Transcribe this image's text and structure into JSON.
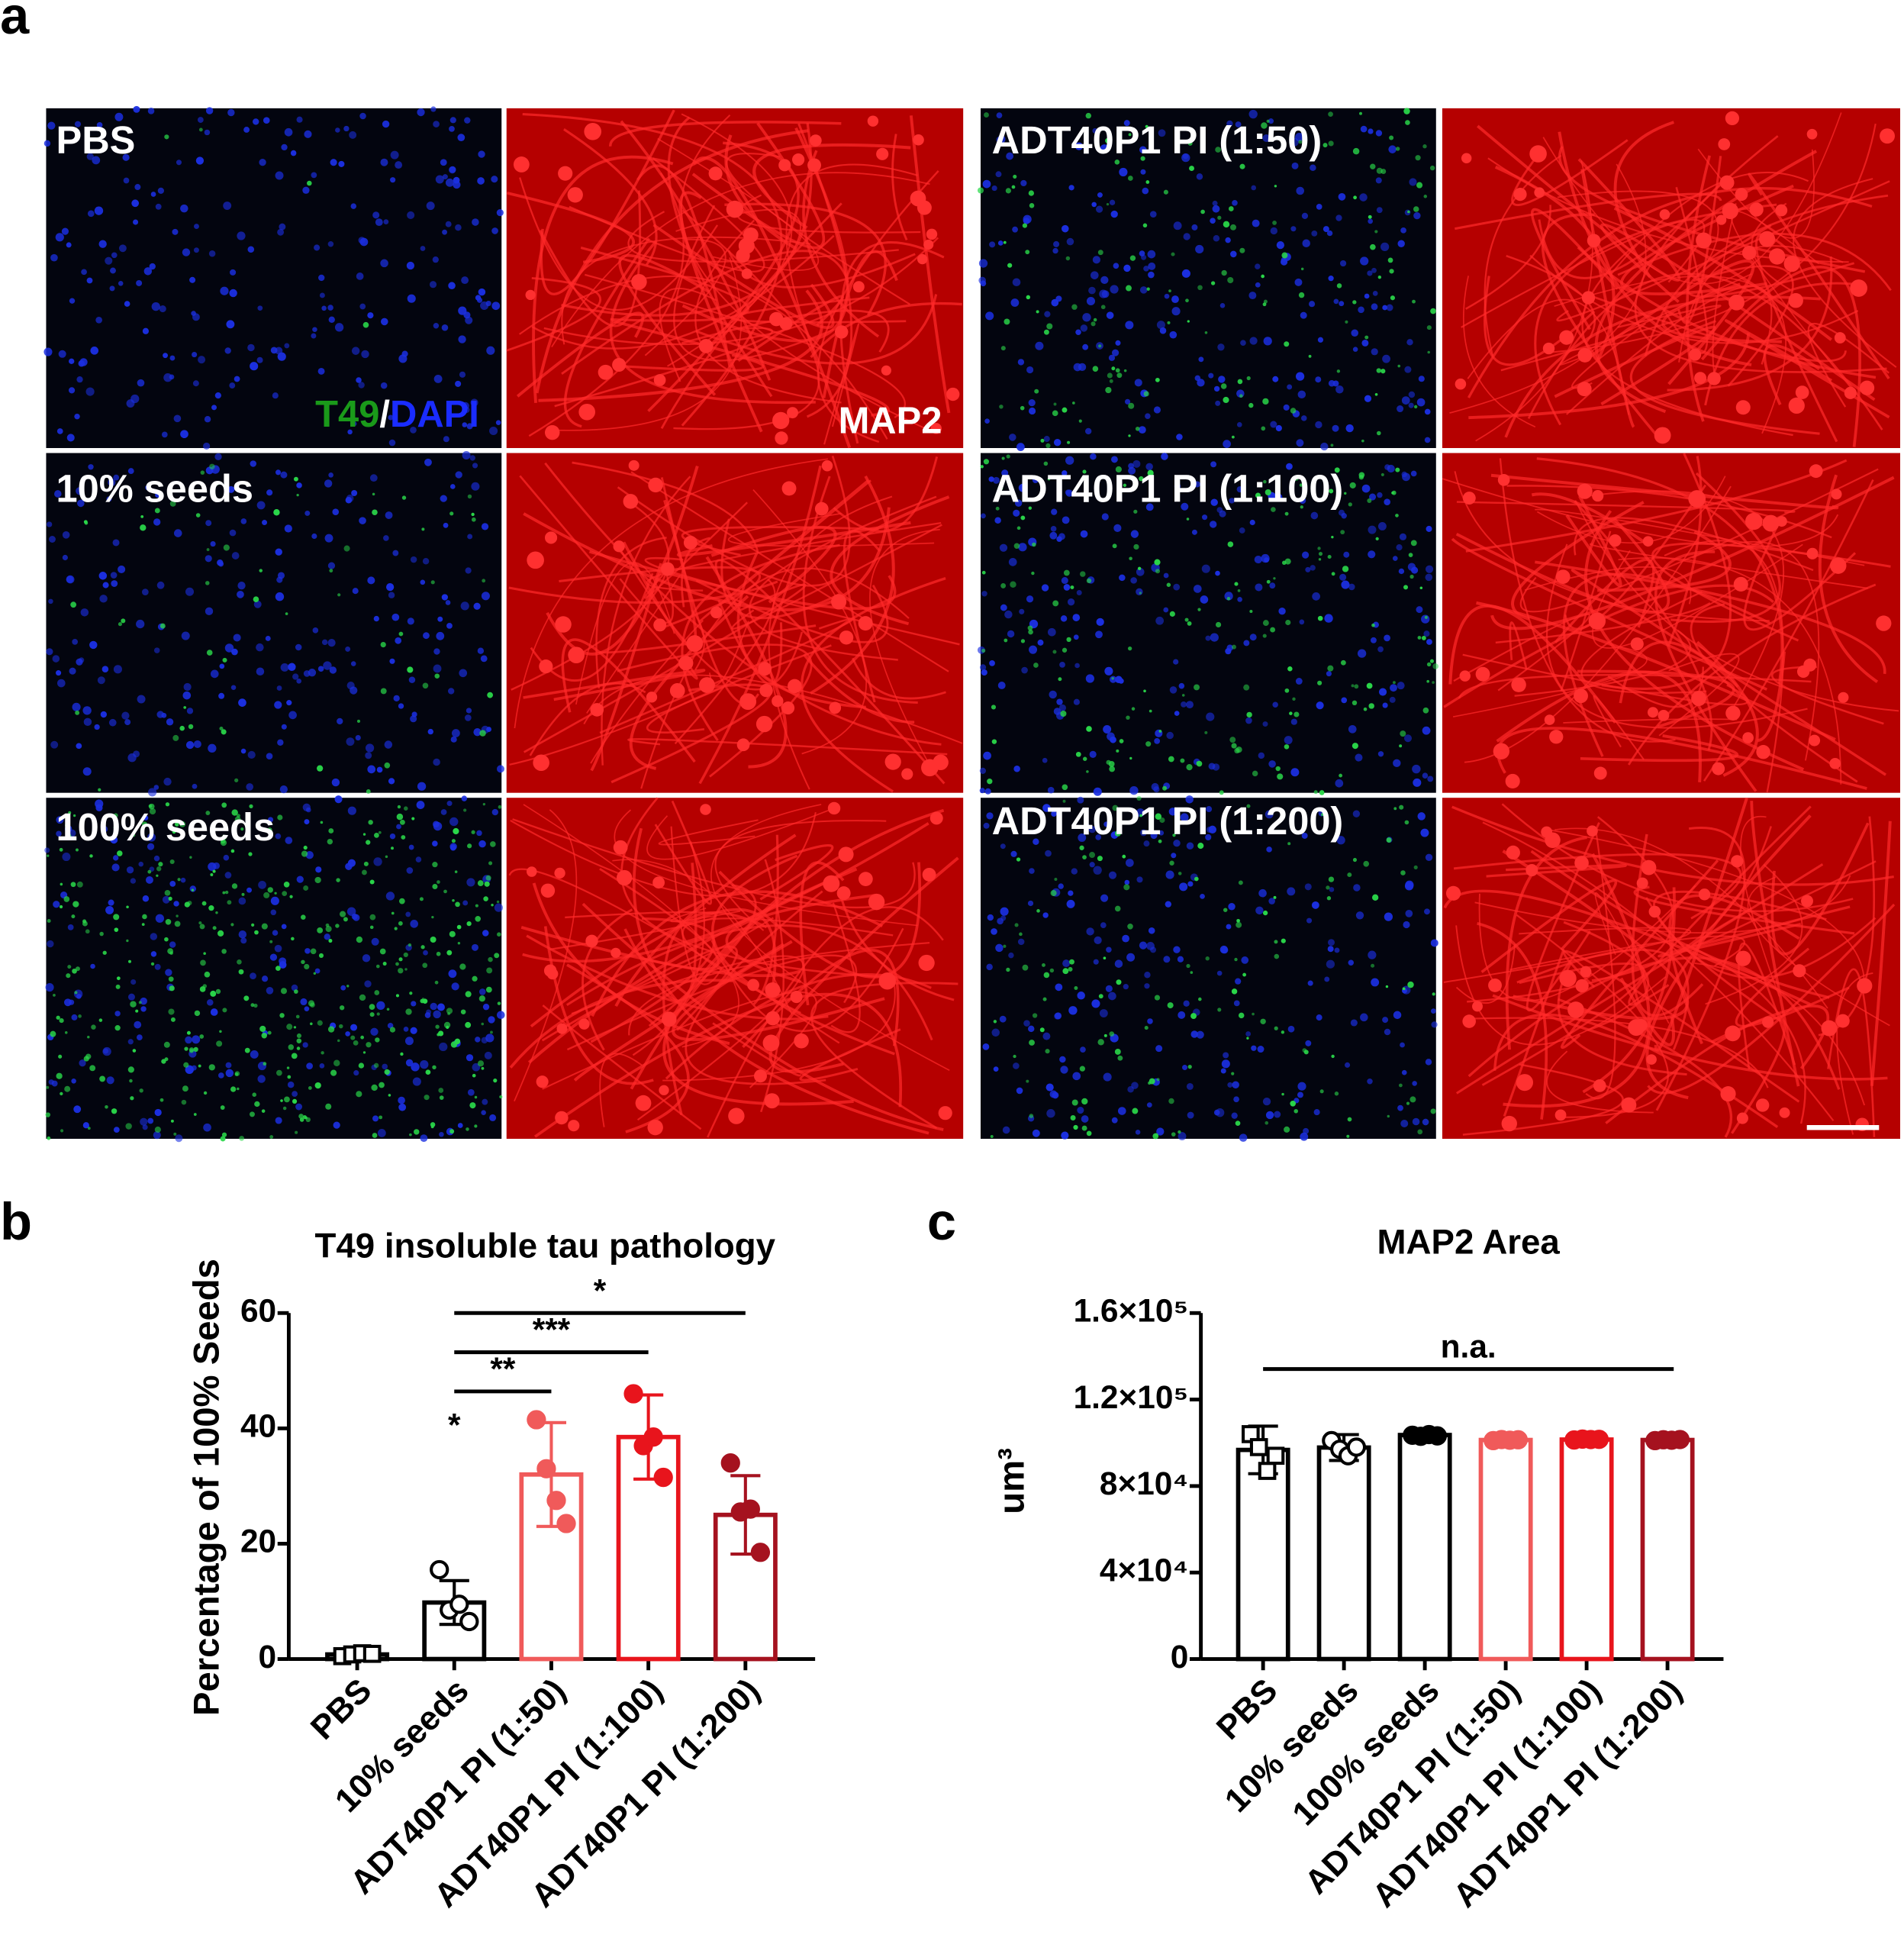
{
  "panel_a": {
    "label": "a",
    "left_labels": [
      "PBS",
      "10% seeds",
      "100% seeds"
    ],
    "right_labels": [
      "ADT40P1 PI (1:50)",
      "ADT40P1 PI (1:100)",
      "ADT40P1 PI (1:200)"
    ],
    "stain_green": "T49",
    "stain_sep": "/",
    "stain_blue": "DAPI",
    "stain_red": "MAP2"
  },
  "chart_data": [
    {
      "type": "bar",
      "panel": "b",
      "title": "T49 insoluble tau pathology",
      "y_label": "Percentage of 100% Seeds",
      "categories": [
        "PBS",
        "10% seeds",
        "ADT40P1 PI (1:50)",
        "ADT40P1 PI (1:100)",
        "ADT40P1 PI (1:200)"
      ],
      "values": [
        0.8,
        9.8,
        32,
        38.5,
        25
      ],
      "errors": [
        0.5,
        3.8,
        9,
        7.3,
        6.8
      ],
      "points": [
        [
          0.5,
          0.8,
          1.0,
          0.9
        ],
        [
          15.5,
          8.5,
          9.5,
          6.5
        ],
        [
          41.5,
          33,
          27.5,
          23.5
        ],
        [
          46,
          37,
          38.5,
          31.5
        ],
        [
          34,
          25.5,
          26,
          18.5
        ]
      ],
      "colors": [
        "#000000",
        "#000000",
        "#f05a5a",
        "#e8141c",
        "#a5121f"
      ],
      "markers": [
        "open-square",
        "open-circle",
        "circle",
        "circle",
        "circle"
      ],
      "ylim": [
        0,
        60
      ],
      "yticks": [
        0,
        20,
        40,
        60
      ],
      "annotations": [
        {
          "text": "*",
          "category": "10% seeds"
        }
      ],
      "brackets": [
        {
          "text": "**",
          "from": "10% seeds",
          "to": "ADT40P1 PI (1:50)"
        },
        {
          "text": "***",
          "from": "10% seeds",
          "to": "ADT40P1 PI (1:100)"
        },
        {
          "text": "*",
          "from": "10% seeds",
          "to": "ADT40P1 PI (1:200)"
        }
      ]
    },
    {
      "type": "bar",
      "panel": "c",
      "title": "MAP2  Area",
      "y_label": "um³",
      "categories": [
        "PBS",
        "10% seeds",
        "100% seeds",
        "ADT40P1 PI (1:50)",
        "ADT40P1 PI (1:100)",
        "ADT40P1 PI (1:200)"
      ],
      "values": [
        96700,
        97800,
        103600,
        101300,
        101500,
        101300
      ],
      "errors": [
        11000,
        6000,
        1000,
        1000,
        1000,
        1000
      ],
      "points": [
        [
          104000,
          98000,
          87000,
          94000
        ],
        [
          101000,
          97000,
          94000,
          98000
        ],
        [
          103500,
          103000,
          103800,
          103200
        ],
        [
          101000,
          101500,
          101200,
          101400
        ],
        [
          101300,
          101700,
          101500,
          101600
        ],
        [
          101000,
          101400,
          101200,
          101500
        ]
      ],
      "colors": [
        "#000000",
        "#000000",
        "#000000",
        "#f05a5a",
        "#e8141c",
        "#a5121f"
      ],
      "markers": [
        "open-square",
        "open-circle",
        "circle",
        "circle",
        "circle",
        "circle"
      ],
      "ylim": [
        0,
        160000
      ],
      "yticks": [
        0,
        {
          "value": 40000,
          "label": "4×10⁴"
        },
        {
          "value": 80000,
          "label": "8×10⁴"
        },
        {
          "value": 120000,
          "label": "1.2×10⁵"
        },
        {
          "value": 160000,
          "label": "1.6×10⁵"
        }
      ],
      "brackets": [
        {
          "text": "n.a.",
          "from": "PBS",
          "to": "ADT40P1 PI (1:200)"
        }
      ]
    }
  ]
}
